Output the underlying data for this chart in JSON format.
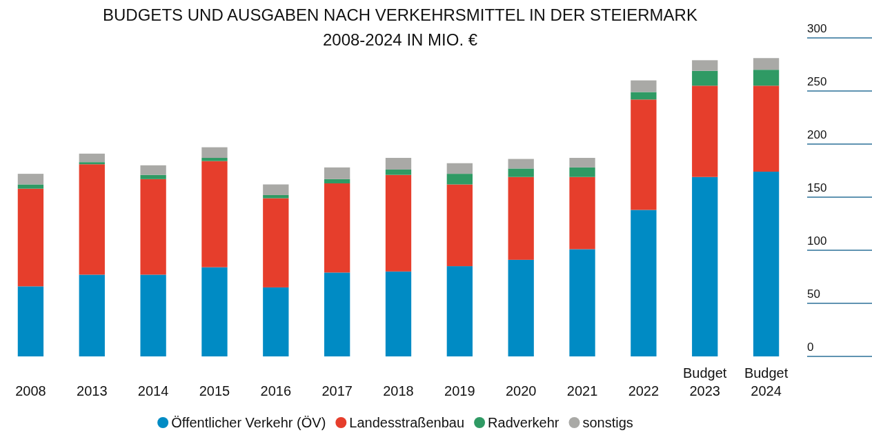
{
  "chart_data": {
    "type": "bar",
    "title": "BUDGETS UND AUSGABEN NACH VERKEHRSMITTEL IN DER STEIERMARK 2008-2024 IN MIO. €",
    "categories": [
      "2008",
      "2013",
      "2014",
      "2015",
      "2016",
      "2017",
      "2018",
      "2019",
      "2020",
      "2021",
      "2022",
      "Budget 2023",
      "Budget 2024"
    ],
    "stacked": true,
    "ylim": [
      0,
      300
    ],
    "yticks": [
      0,
      50,
      100,
      150,
      200,
      250,
      300
    ],
    "grid": false,
    "legend": "bottom",
    "series": [
      {
        "name": "Öffentlicher Verkehr (ÖV)",
        "color": "#008bc4",
        "values": [
          66,
          77,
          77,
          84,
          65,
          79,
          80,
          85,
          91,
          101,
          138,
          169,
          174
        ]
      },
      {
        "name": "Landesstraßenbau",
        "color": "#e63e2c",
        "values": [
          92,
          104,
          90,
          100,
          84,
          84,
          91,
          77,
          78,
          68,
          104,
          86,
          81
        ]
      },
      {
        "name": "Radverkehr",
        "color": "#2f9a64",
        "values": [
          4,
          2,
          4,
          3,
          3,
          4,
          5,
          10,
          8,
          9,
          7,
          14,
          15
        ]
      },
      {
        "name": "sonstigs",
        "color": "#a9a9a6",
        "values": [
          10,
          8,
          9,
          10,
          10,
          11,
          11,
          10,
          9,
          9,
          11,
          10,
          11
        ]
      }
    ]
  }
}
